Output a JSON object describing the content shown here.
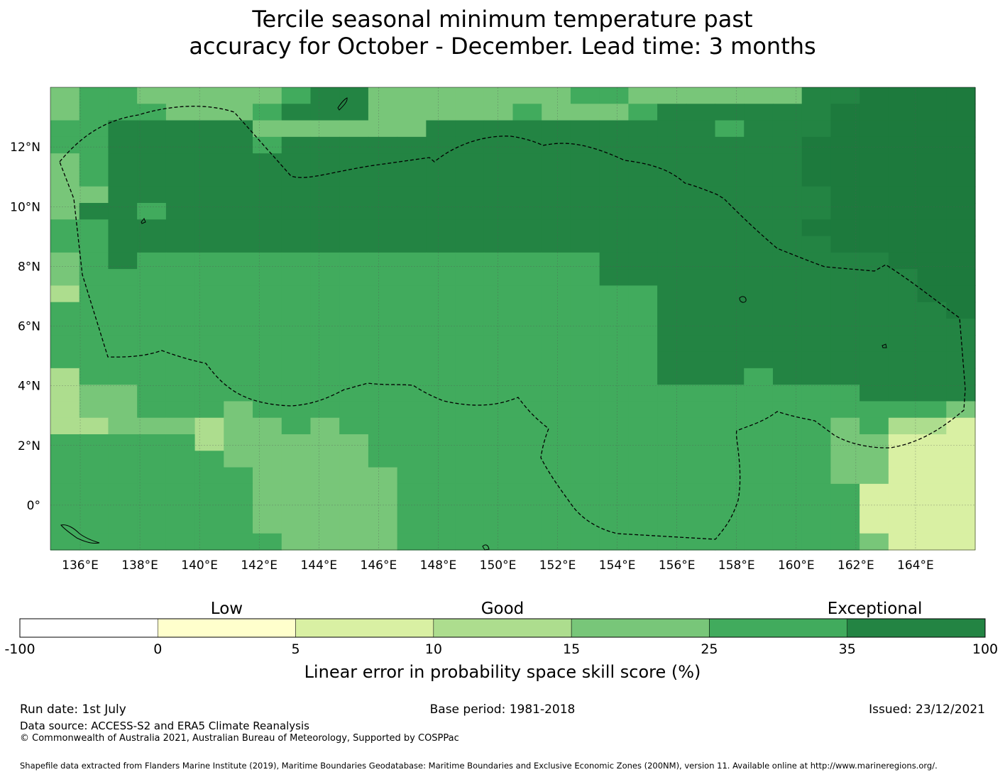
{
  "title_lines": [
    "Tercile seasonal minimum temperature past",
    "accuracy for October - December. Lead time: 3 months"
  ],
  "map": {
    "lon_labels": [
      "136°E",
      "138°E",
      "140°E",
      "142°E",
      "144°E",
      "146°E",
      "148°E",
      "150°E",
      "152°E",
      "154°E",
      "156°E",
      "158°E",
      "160°E",
      "162°E",
      "164°E"
    ],
    "lat_labels": [
      "12°N",
      "10°N",
      "8°N",
      "6°N",
      "4°N",
      "2°N",
      "0°"
    ],
    "lon_range": [
      135,
      166
    ],
    "lat_range": [
      -1.5,
      14
    ],
    "grid": true,
    "boundary": "dashed",
    "grid_rows": [
      "45544444566444444455444444667777",
      "45554445666444445444566666677777",
      "55666664444446666666666566677777",
      "55666665666666666666666666777777",
      "45666666666666666666666666777777",
      "45666666666666666666666666777777",
      "44666666666666666666666666677777",
      "46656666666666666666666666677777",
      "55666666666666666666666666777777",
      "55666666666666666666666666677777",
      "45655555555555555556666666666777",
      "45555555555555555556666666666677",
      "35555555555555555555566666666677",
      "55555555555555555555566666666667",
      "55555555555555555555566666666666",
      "55555555555555555555566666666666",
      "55555555555555555555566666666666",
      "35555555555555555555566656666666",
      "34455555555555555555555555556666",
      "34455545555555555555555555555554",
      "33444344545555555555555555545332",
      "55555344444555555555555555544222",
      "55555544444555555555555555544222",
      "55555554444455555555555555544222",
      "55555554444455555555555555552222",
      "55555554444455555555555555552222",
      "55555554444455555555555555552222",
      "55555555444455555555555555554222"
    ],
    "color_classes": [
      "#ffffff",
      "#ffffcc",
      "#d9f0a3",
      "#addd8e",
      "#78c679",
      "#41ab5d",
      "#238443",
      "#1d7a3d"
    ]
  },
  "colorbar": {
    "section_labels": [
      "Low",
      "Good",
      "Exceptional"
    ],
    "tick_labels": [
      "-100",
      "0",
      "5",
      "10",
      "15",
      "25",
      "35",
      "100"
    ],
    "colors": [
      "#ffffff",
      "#ffffcc",
      "#d9f0a3",
      "#addd8e",
      "#78c679",
      "#41ab5d",
      "#238443"
    ],
    "axis_label": "Linear error in probability space skill score (%)"
  },
  "footer": {
    "run_date": "Run date: 1st July",
    "base_period": "Base period: 1981-2018",
    "issued": "Issued: 23/12/2021",
    "data_source": "Data source: ACCESS-S2 and ERA5 Climate Reanalysis",
    "copyright": "© Commonwealth of Australia 2021, Australian Bureau of Meteorology, Supported by COSPPac",
    "shapefile": "Shapefile data extracted from Flanders Marine Institute (2019), Maritime Boundaries Geodatabase: Maritime Boundaries and Exclusive Economic Zones (200NM), version 11. Available online at http://www.marineregions.org/."
  }
}
